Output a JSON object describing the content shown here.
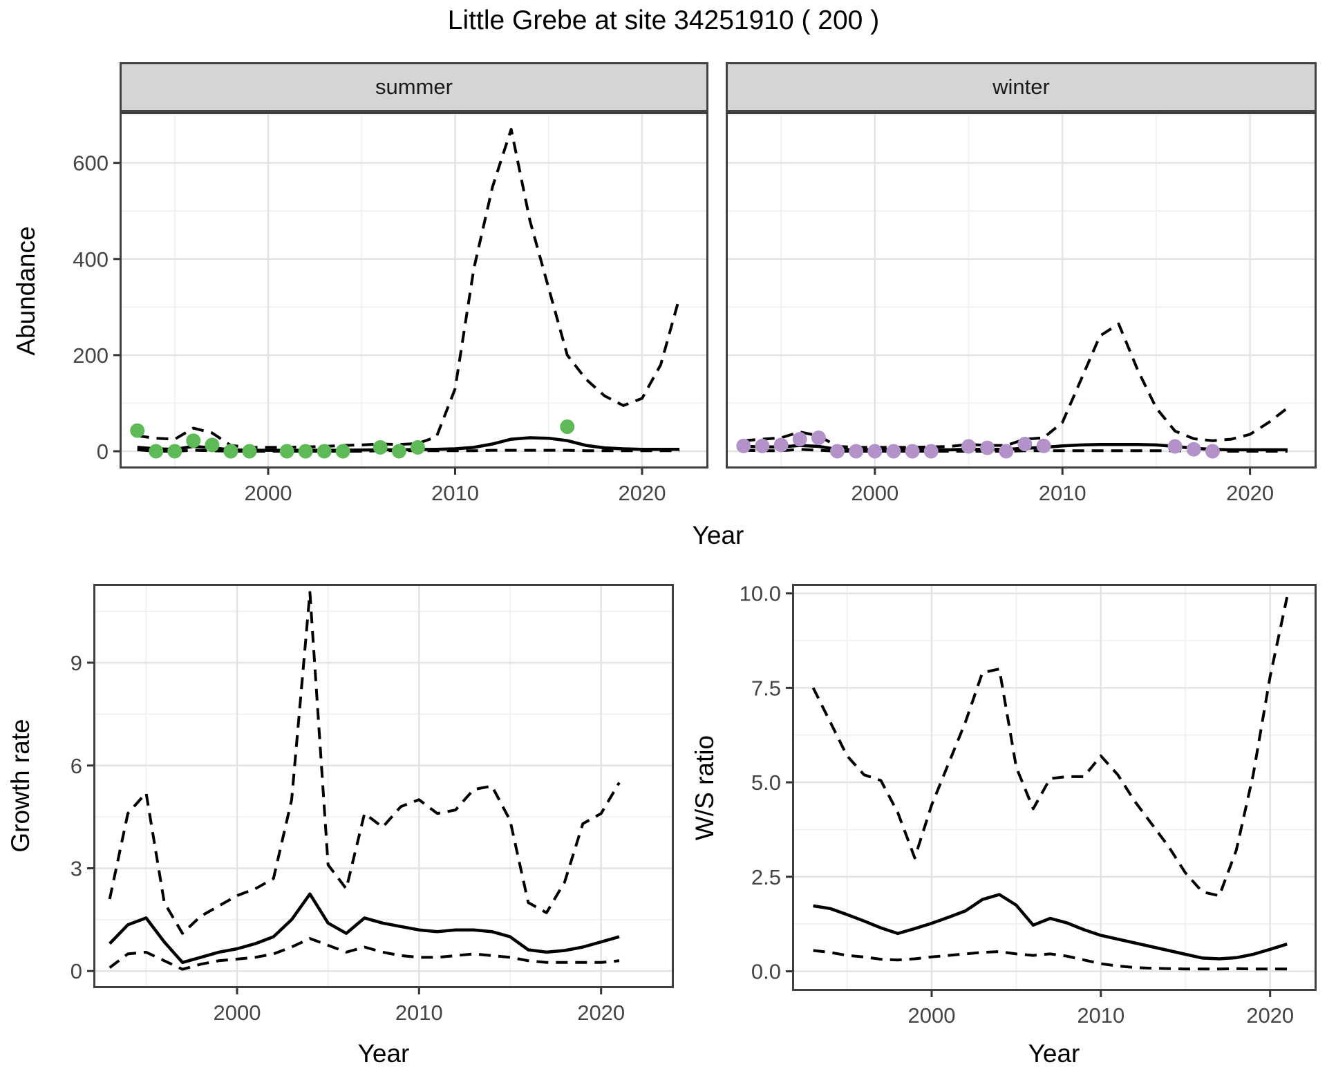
{
  "title": "Little Grebe at site 34251910 ( 200 )",
  "facets": [
    {
      "label": "summer"
    },
    {
      "label": "winter"
    }
  ],
  "axis_titles": {
    "abundance": "Abundance",
    "year_top": "Year",
    "growth": "Growth rate",
    "ws": "W/S ratio",
    "year_growth": "Year",
    "year_ws": "Year"
  },
  "style": {
    "summer_point": "#5eba57",
    "winter_point": "#b392c9",
    "line": "#000000",
    "grid_major": "#e3e3e3",
    "grid_minor": "#f0f0f0",
    "panel_border": "#3f3f3f",
    "tick_mark": "#333333",
    "tick_label": "#444444",
    "strip_bg": "#d5d5d5"
  },
  "chart_data": [
    {
      "id": "abundance-summer",
      "type": "line",
      "facet": "summer",
      "xlabel": "Year",
      "ylabel": "Abundance",
      "x_domain": [
        1992.05,
        2023.55
      ],
      "y_domain": [
        -36,
        706
      ],
      "x_ticks": [
        2000,
        2010,
        2020
      ],
      "x_tick_labels": [
        "2000",
        "2010",
        "2020"
      ],
      "x_minor": [
        1995,
        2005,
        2015
      ],
      "y_ticks": [
        0,
        200,
        400,
        600
      ],
      "y_tick_labels": [
        "0",
        "200",
        "400",
        "600"
      ],
      "y_minor": [
        100,
        300,
        500,
        700
      ],
      "series": [
        {
          "name": "upper-ci",
          "type": "dashed",
          "x": [
            1993,
            1994,
            1995,
            1996,
            1997,
            1998,
            1999,
            2000,
            2001,
            2002,
            2003,
            2004,
            2005,
            2006,
            2007,
            2008,
            2009,
            2010,
            2011,
            2012,
            2013,
            2014,
            2015,
            2016,
            2017,
            2018,
            2019,
            2020,
            2021,
            2022
          ],
          "y": [
            32,
            27,
            25,
            48,
            38,
            12,
            8,
            8,
            8,
            9,
            10,
            12,
            13,
            15,
            14,
            16,
            30,
            130,
            380,
            550,
            670,
            480,
            340,
            200,
            150,
            115,
            95,
            110,
            180,
            320
          ]
        },
        {
          "name": "median",
          "type": "solid",
          "x": [
            1993,
            1994,
            1995,
            1996,
            1997,
            1998,
            1999,
            2000,
            2001,
            2002,
            2003,
            2004,
            2005,
            2006,
            2007,
            2008,
            2009,
            2010,
            2011,
            2012,
            2013,
            2014,
            2015,
            2016,
            2017,
            2018,
            2019,
            2020,
            2021,
            2022
          ],
          "y": [
            8,
            5,
            4,
            10,
            7,
            3,
            2,
            2,
            2,
            2,
            2,
            2,
            2.5,
            3,
            3,
            3.5,
            4,
            5,
            8,
            15,
            25,
            28,
            27,
            22,
            12,
            7,
            5,
            4,
            4,
            4
          ]
        },
        {
          "name": "lower-ci",
          "type": "dashed",
          "x": [
            1993,
            1994,
            1995,
            1996,
            1997,
            1998,
            1999,
            2000,
            2001,
            2002,
            2003,
            2004,
            2005,
            2006,
            2007,
            2008,
            2009,
            2010,
            2011,
            2012,
            2013,
            2014,
            2015,
            2016,
            2017,
            2018,
            2019,
            2020,
            2021,
            2022
          ],
          "y": [
            3,
            0,
            0,
            2,
            1,
            0,
            0,
            0,
            0,
            0,
            0,
            0,
            0,
            1,
            1,
            1,
            1,
            1,
            1,
            2,
            2,
            2,
            2,
            2,
            1,
            1,
            1,
            1,
            1,
            1
          ]
        },
        {
          "name": "observed",
          "type": "points",
          "color": "#5eba57",
          "x": [
            1993,
            1994,
            1995,
            1996,
            1997,
            1998,
            1999,
            2001,
            2002,
            2003,
            2004,
            2006,
            2007,
            2008,
            2016
          ],
          "y": [
            43,
            0,
            0,
            22,
            13,
            0,
            0,
            0,
            0,
            0,
            0,
            8,
            0,
            8,
            51
          ]
        }
      ]
    },
    {
      "id": "abundance-winter",
      "type": "line",
      "facet": "winter",
      "xlabel": "Year",
      "ylabel": "Abundance",
      "x_domain": [
        1992.05,
        2023.55
      ],
      "y_domain": [
        -36,
        706
      ],
      "x_ticks": [
        2000,
        2010,
        2020
      ],
      "x_tick_labels": [
        "2000",
        "2010",
        "2020"
      ],
      "x_minor": [
        1995,
        2005,
        2015
      ],
      "y_ticks": [
        0,
        200,
        400,
        600
      ],
      "y_tick_labels": [
        "0",
        "200",
        "400",
        "600"
      ],
      "y_minor": [
        100,
        300,
        500,
        700
      ],
      "series": [
        {
          "name": "upper-ci",
          "type": "dashed",
          "x": [
            1993,
            1994,
            1995,
            1996,
            1997,
            1998,
            1999,
            2000,
            2001,
            2002,
            2003,
            2004,
            2005,
            2006,
            2007,
            2008,
            2009,
            2010,
            2011,
            2012,
            2013,
            2014,
            2015,
            2016,
            2017,
            2018,
            2019,
            2020,
            2021,
            2022
          ],
          "y": [
            22,
            25,
            28,
            40,
            32,
            10,
            8,
            8,
            8,
            8,
            9,
            10,
            14,
            12,
            12,
            25,
            28,
            60,
            150,
            240,
            265,
            170,
            90,
            42,
            26,
            22,
            25,
            35,
            60,
            90
          ]
        },
        {
          "name": "median",
          "type": "solid",
          "x": [
            1993,
            1994,
            1995,
            1996,
            1997,
            1998,
            1999,
            2000,
            2001,
            2002,
            2003,
            2004,
            2005,
            2006,
            2007,
            2008,
            2009,
            2010,
            2011,
            2012,
            2013,
            2014,
            2015,
            2016,
            2017,
            2018,
            2019,
            2020,
            2021,
            2022
          ],
          "y": [
            10,
            9,
            9,
            12,
            10,
            4,
            3,
            3,
            3,
            3,
            3,
            3,
            4,
            4,
            4,
            6,
            8,
            11,
            13,
            14,
            14,
            14,
            13,
            10,
            6,
            4,
            3,
            3,
            3,
            3
          ]
        },
        {
          "name": "lower-ci",
          "type": "dashed",
          "x": [
            1993,
            1994,
            1995,
            1996,
            1997,
            1998,
            1999,
            2000,
            2001,
            2002,
            2003,
            2004,
            2005,
            2006,
            2007,
            2008,
            2009,
            2010,
            2011,
            2012,
            2013,
            2014,
            2015,
            2016,
            2017,
            2018,
            2019,
            2020,
            2021,
            2022
          ],
          "y": [
            2,
            1,
            1,
            4,
            2,
            0,
            0,
            0,
            0,
            0,
            0,
            0,
            0,
            0,
            0,
            1,
            1,
            1,
            1,
            1,
            1,
            1,
            1,
            1,
            0,
            0,
            0,
            0,
            0,
            0
          ]
        },
        {
          "name": "observed",
          "type": "points",
          "color": "#b392c9",
          "x": [
            1993,
            1994,
            1995,
            1996,
            1997,
            1998,
            1999,
            2000,
            2001,
            2002,
            2003,
            2005,
            2006,
            2007,
            2008,
            2009,
            2016,
            2017,
            2018
          ],
          "y": [
            11,
            11,
            13,
            25,
            28,
            0,
            0,
            0,
            0,
            0,
            0,
            10,
            7,
            0,
            15,
            11,
            10,
            4,
            0
          ]
        }
      ]
    },
    {
      "id": "growth-rate",
      "type": "line",
      "xlabel": "Year",
      "ylabel": "Growth rate",
      "x_domain": [
        1992.1,
        2024.0
      ],
      "y_domain": [
        -0.5,
        11.3
      ],
      "x_ticks": [
        2000,
        2010,
        2020
      ],
      "x_tick_labels": [
        "2000",
        "2010",
        "2020"
      ],
      "x_minor": [
        1995,
        2005,
        2015
      ],
      "y_ticks": [
        0,
        3,
        6,
        9
      ],
      "y_tick_labels": [
        "0",
        "3",
        "6",
        "9"
      ],
      "y_minor": [
        1.5,
        4.5,
        7.5,
        10.5
      ],
      "series": [
        {
          "name": "upper-ci",
          "type": "dashed",
          "x": [
            1993,
            1994,
            1995,
            1996,
            1997,
            1998,
            1999,
            2000,
            2001,
            2002,
            2003,
            2004,
            2005,
            2006,
            2007,
            2008,
            2009,
            2010,
            2011,
            2012,
            2013,
            2014,
            2015,
            2016,
            2017,
            2018,
            2019,
            2020,
            2021
          ],
          "y": [
            2.1,
            4.6,
            5.2,
            2.0,
            1.1,
            1.6,
            1.9,
            2.2,
            2.4,
            2.7,
            5.0,
            11.05,
            3.1,
            2.4,
            4.6,
            4.2,
            4.8,
            5.0,
            4.6,
            4.7,
            5.3,
            5.4,
            4.4,
            2.0,
            1.7,
            2.6,
            4.3,
            4.6,
            5.5
          ]
        },
        {
          "name": "median",
          "type": "solid",
          "x": [
            1993,
            1994,
            1995,
            1996,
            1997,
            1998,
            1999,
            2000,
            2001,
            2002,
            2003,
            2004,
            2005,
            2006,
            2007,
            2008,
            2009,
            2010,
            2011,
            2012,
            2013,
            2014,
            2015,
            2016,
            2017,
            2018,
            2019,
            2020,
            2021
          ],
          "y": [
            0.8,
            1.35,
            1.55,
            0.85,
            0.25,
            0.4,
            0.55,
            0.65,
            0.8,
            1.0,
            1.5,
            2.25,
            1.4,
            1.1,
            1.55,
            1.4,
            1.3,
            1.2,
            1.15,
            1.2,
            1.2,
            1.15,
            1.0,
            0.62,
            0.55,
            0.6,
            0.7,
            0.85,
            1.0
          ]
        },
        {
          "name": "lower-ci",
          "type": "dashed",
          "x": [
            1993,
            1994,
            1995,
            1996,
            1997,
            1998,
            1999,
            2000,
            2001,
            2002,
            2003,
            2004,
            2005,
            2006,
            2007,
            2008,
            2009,
            2010,
            2011,
            2012,
            2013,
            2014,
            2015,
            2016,
            2017,
            2018,
            2019,
            2020,
            2021
          ],
          "y": [
            0.1,
            0.5,
            0.55,
            0.3,
            0.05,
            0.2,
            0.3,
            0.35,
            0.4,
            0.5,
            0.7,
            0.95,
            0.75,
            0.55,
            0.7,
            0.55,
            0.45,
            0.4,
            0.4,
            0.45,
            0.5,
            0.45,
            0.4,
            0.3,
            0.25,
            0.25,
            0.25,
            0.25,
            0.3
          ]
        }
      ]
    },
    {
      "id": "ws-ratio",
      "type": "line",
      "xlabel": "Year",
      "ylabel": "W/S ratio",
      "x_domain": [
        1991.75,
        2022.75
      ],
      "y_domain": [
        -0.52,
        10.25
      ],
      "x_ticks": [
        2000,
        2010,
        2020
      ],
      "x_tick_labels": [
        "2000",
        "2010",
        "2020"
      ],
      "x_minor": [
        1995,
        2005,
        2015
      ],
      "y_ticks": [
        0,
        2.5,
        5,
        7.5,
        10
      ],
      "y_tick_labels": [
        "0.0",
        "2.5",
        "5.0",
        "7.5",
        "10.0"
      ],
      "y_minor": [
        1.25,
        3.75,
        6.25,
        8.75
      ],
      "series": [
        {
          "name": "upper-ci",
          "type": "dashed",
          "x": [
            1993,
            1994,
            1995,
            1996,
            1997,
            1998,
            1999,
            2000,
            2001,
            2002,
            2003,
            2004,
            2005,
            2006,
            2007,
            2008,
            2009,
            2010,
            2011,
            2012,
            2013,
            2014,
            2015,
            2016,
            2017,
            2018,
            2019,
            2020,
            2021
          ],
          "y": [
            7.5,
            6.6,
            5.7,
            5.2,
            5.05,
            4.2,
            3.0,
            4.4,
            5.5,
            6.6,
            7.9,
            8.0,
            5.4,
            4.3,
            5.1,
            5.15,
            5.15,
            5.7,
            5.2,
            4.5,
            3.9,
            3.3,
            2.6,
            2.1,
            2.0,
            3.2,
            5.2,
            7.8,
            9.9
          ]
        },
        {
          "name": "median",
          "type": "solid",
          "x": [
            1993,
            1994,
            1995,
            1996,
            1997,
            1998,
            1999,
            2000,
            2001,
            2002,
            2003,
            2004,
            2005,
            2006,
            2007,
            2008,
            2009,
            2010,
            2011,
            2012,
            2013,
            2014,
            2015,
            2016,
            2017,
            2018,
            2019,
            2020,
            2021
          ],
          "y": [
            1.73,
            1.66,
            1.5,
            1.33,
            1.15,
            1.0,
            1.13,
            1.27,
            1.43,
            1.6,
            1.9,
            2.03,
            1.75,
            1.22,
            1.4,
            1.28,
            1.1,
            0.95,
            0.85,
            0.75,
            0.65,
            0.55,
            0.45,
            0.35,
            0.33,
            0.36,
            0.45,
            0.58,
            0.72
          ]
        },
        {
          "name": "lower-ci",
          "type": "dashed",
          "x": [
            1993,
            1994,
            1995,
            1996,
            1997,
            1998,
            1999,
            2000,
            2001,
            2002,
            2003,
            2004,
            2005,
            2006,
            2007,
            2008,
            2009,
            2010,
            2011,
            2012,
            2013,
            2014,
            2015,
            2016,
            2017,
            2018,
            2019,
            2020,
            2021
          ],
          "y": [
            0.55,
            0.5,
            0.42,
            0.38,
            0.32,
            0.3,
            0.33,
            0.38,
            0.42,
            0.46,
            0.5,
            0.52,
            0.46,
            0.42,
            0.46,
            0.4,
            0.3,
            0.2,
            0.14,
            0.1,
            0.08,
            0.07,
            0.06,
            0.06,
            0.06,
            0.07,
            0.06,
            0.06,
            0.06
          ]
        }
      ]
    }
  ]
}
